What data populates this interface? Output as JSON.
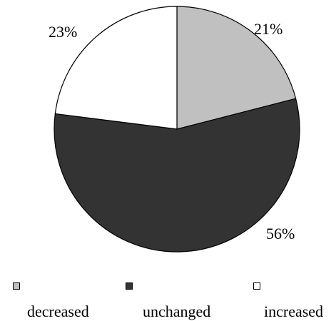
{
  "chart_data": {
    "type": "pie",
    "categories": [
      "decreased",
      "unchanged",
      "increased"
    ],
    "values": [
      21,
      56,
      23
    ],
    "labels": [
      "21%",
      "56%",
      "23%"
    ],
    "colors": [
      "#c0c0c0",
      "#333333",
      "#ffffff"
    ],
    "legend_position": "bottom",
    "start": "12 o'clock, clockwise"
  }
}
